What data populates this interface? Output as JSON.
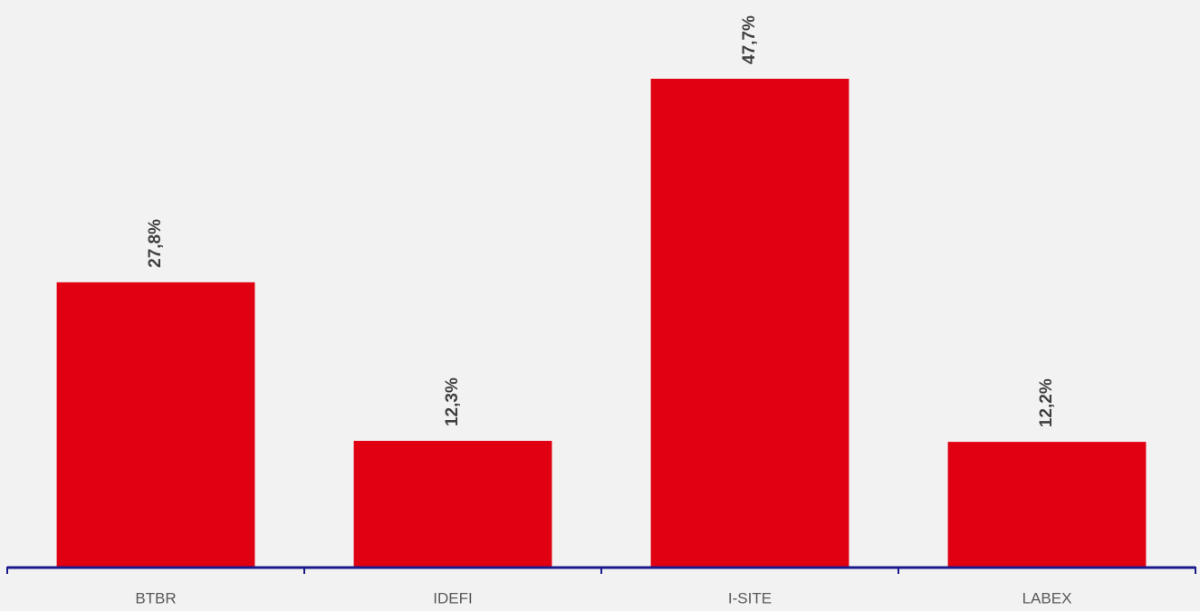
{
  "chart_data": {
    "type": "bar",
    "categories": [
      "BTBR",
      "IDEFI",
      "I-SITE",
      "LABEX"
    ],
    "values": [
      27.8,
      12.3,
      47.7,
      12.2
    ],
    "value_labels": [
      "27,8%",
      "12,3%",
      "47,7%",
      "12,2%"
    ],
    "color": "#e10012"
  }
}
